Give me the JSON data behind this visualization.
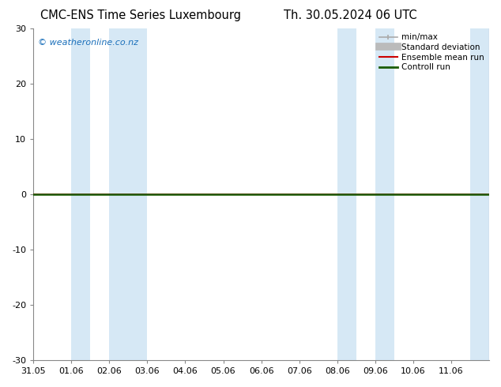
{
  "title_left": "CMC-ENS Time Series Luxembourg",
  "title_right": "Th. 30.05.2024 06 UTC",
  "ylim": [
    -30,
    30
  ],
  "yticks": [
    -30,
    -20,
    -10,
    0,
    10,
    20,
    30
  ],
  "x_labels": [
    "31.05",
    "01.06",
    "02.06",
    "03.06",
    "04.06",
    "05.06",
    "06.06",
    "07.06",
    "08.06",
    "09.06",
    "10.06",
    "11.06"
  ],
  "watermark": "© weatheronline.co.nz",
  "watermark_color": "#1a6fba",
  "line_color_green": "#1a5c00",
  "line_color_red": "#cc0000",
  "shaded_regions": [
    {
      "xmin": 1.0,
      "xmax": 1.5,
      "color": "#d6e8f5"
    },
    {
      "xmin": 2.0,
      "xmax": 3.0,
      "color": "#d6e8f5"
    },
    {
      "xmin": 8.0,
      "xmax": 8.5,
      "color": "#d6e8f5"
    },
    {
      "xmin": 9.0,
      "xmax": 9.5,
      "color": "#d6e8f5"
    },
    {
      "xmin": 11.5,
      "xmax": 12.0,
      "color": "#d6e8f5"
    }
  ],
  "legend_entries": [
    {
      "label": "min/max",
      "color": "#aaaaaa",
      "lw": 1.2
    },
    {
      "label": "Standard deviation",
      "color": "#bbbbbb",
      "lw": 7
    },
    {
      "label": "Ensemble mean run",
      "color": "#cc0000",
      "lw": 1.5
    },
    {
      "label": "Controll run",
      "color": "#1a5c00",
      "lw": 2.0
    }
  ],
  "bg_color": "#ffffff",
  "title_fontsize": 10.5,
  "tick_fontsize": 8.0,
  "legend_fontsize": 7.5
}
